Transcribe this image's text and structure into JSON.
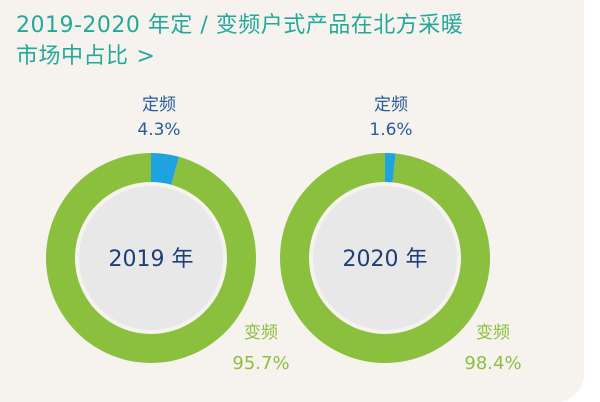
{
  "title_line1": "2019-2020 年定 / 变频户式产品在北方采暖",
  "title_line2": "市场中占比",
  "title_chevron": ">",
  "colors": {
    "background": "#f6f3ef",
    "title": "#23a89a",
    "inverter": "#8bbf3e",
    "fixed": "#1fa3df",
    "center": "#e8e8e8",
    "center_text": "#1d3f78",
    "fixed_label": "#2a5c9a",
    "inverter_label": "#8bbf3e"
  },
  "chart_data": [
    {
      "type": "pie",
      "center_label": "2019 年",
      "slices": [
        {
          "name": "定频",
          "value": 4.3,
          "label": "4.3%"
        },
        {
          "name": "变频",
          "value": 95.7,
          "label": "95.7%"
        }
      ]
    },
    {
      "type": "pie",
      "center_label": "2020 年",
      "slices": [
        {
          "name": "定频",
          "value": 1.6,
          "label": "1.6%"
        },
        {
          "name": "变频",
          "value": 98.4,
          "label": "98.4%"
        }
      ]
    }
  ]
}
